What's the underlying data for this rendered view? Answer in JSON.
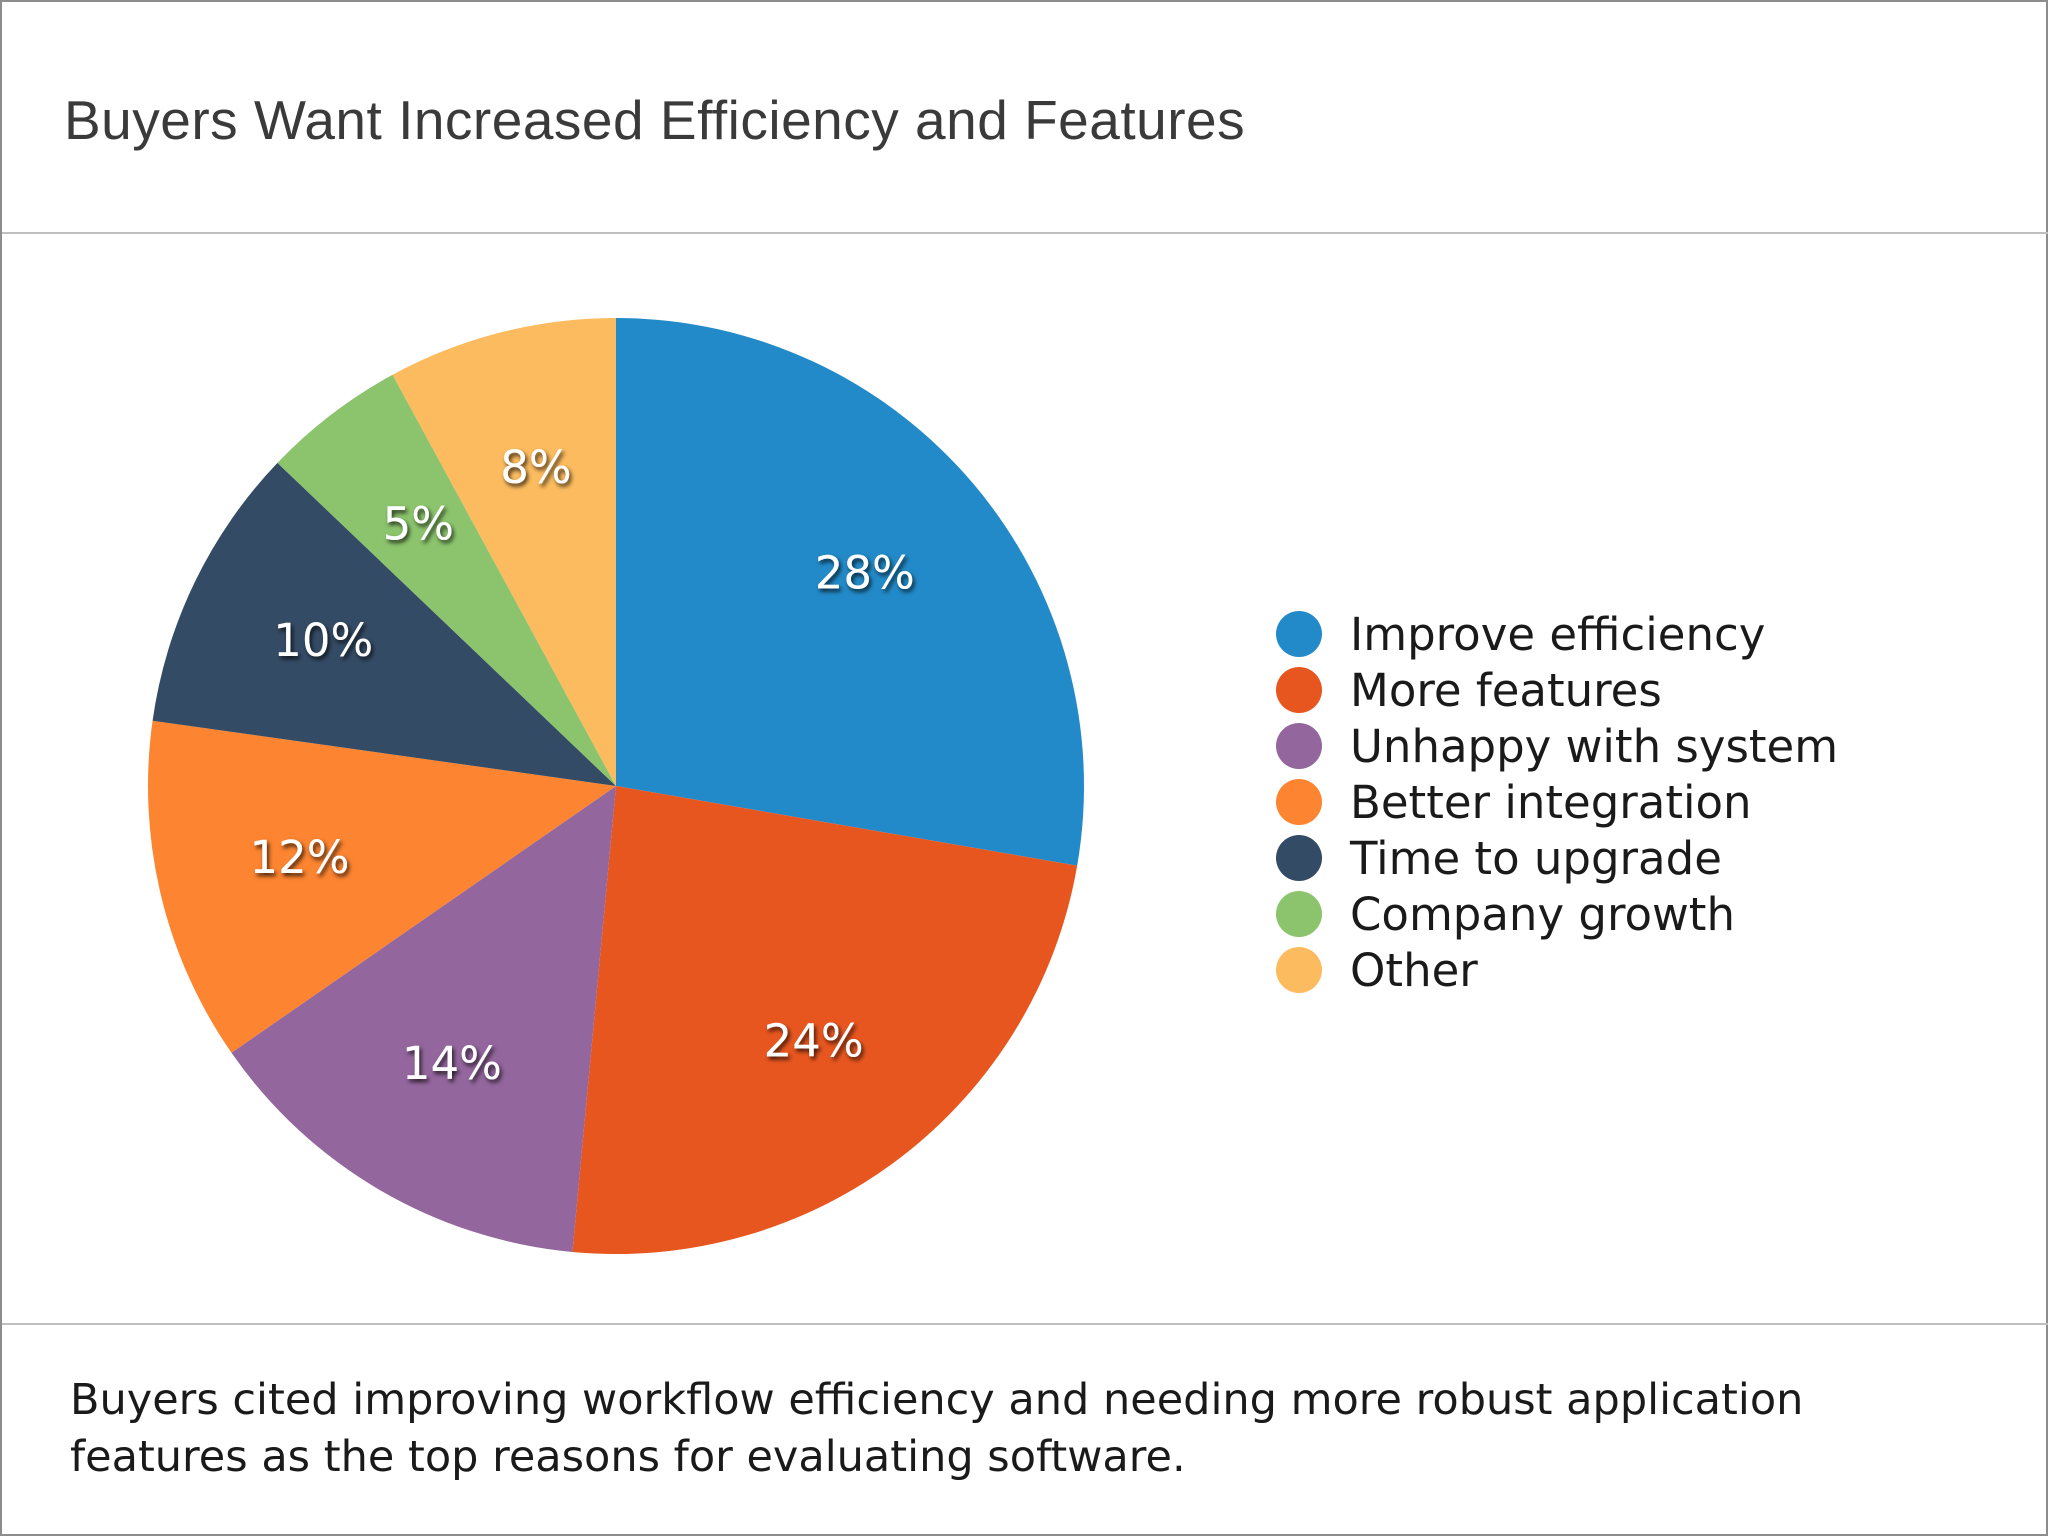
{
  "title": "Buyers Want Increased Efficiency and Features",
  "caption": {
    "line1": "Buyers cited improving workflow efficiency and needing more robust application",
    "line2": "features as the top reasons for evaluating software."
  },
  "chart_data": {
    "type": "pie",
    "start": "12 o'clock",
    "direction": "clockwise",
    "legend_position": "right",
    "slices": [
      {
        "label": "Improve efficiency",
        "value": 28,
        "display": "28%",
        "color": "#228ac8"
      },
      {
        "label": "More features",
        "value": 24,
        "display": "24%",
        "color": "#e8561f"
      },
      {
        "label": "Unhappy with system",
        "value": 14,
        "display": "14%",
        "color": "#93669d"
      },
      {
        "label": "Better integration",
        "value": 12,
        "display": "12%",
        "color": "#fd8430"
      },
      {
        "label": "Time to upgrade",
        "value": 10,
        "display": "10%",
        "color": "#344b65"
      },
      {
        "label": "Company growth",
        "value": 5,
        "display": "5%",
        "color": "#8bc46c"
      },
      {
        "label": "Other",
        "value": 8,
        "display": "8%",
        "color": "#fcbb5e"
      }
    ]
  }
}
